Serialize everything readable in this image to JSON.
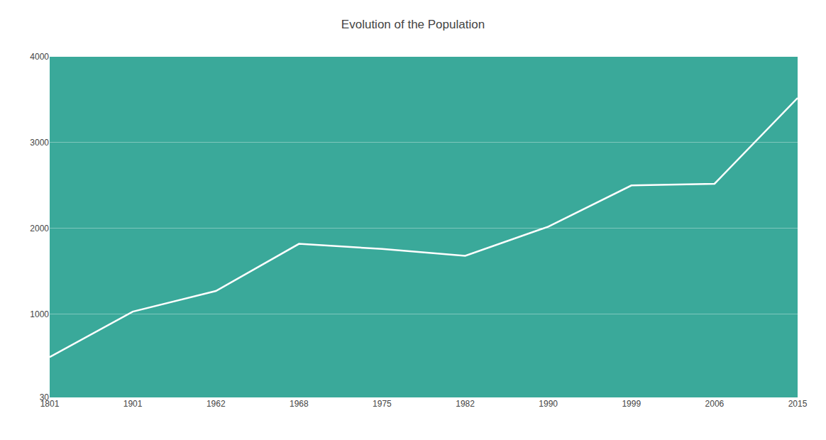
{
  "chart_data": {
    "type": "line",
    "title": "Evolution of the Population",
    "categories": [
      "1801",
      "1901",
      "1962",
      "1968",
      "1975",
      "1982",
      "1990",
      "1999",
      "2006",
      "2015"
    ],
    "values": [
      500,
      1030,
      1270,
      1820,
      1760,
      1680,
      2020,
      2500,
      2520,
      3520
    ],
    "color": "#ffffff",
    "ylim": [
      30,
      4000
    ],
    "yticks": [
      30,
      1000,
      2000,
      3000,
      4000
    ],
    "grid": true
  }
}
